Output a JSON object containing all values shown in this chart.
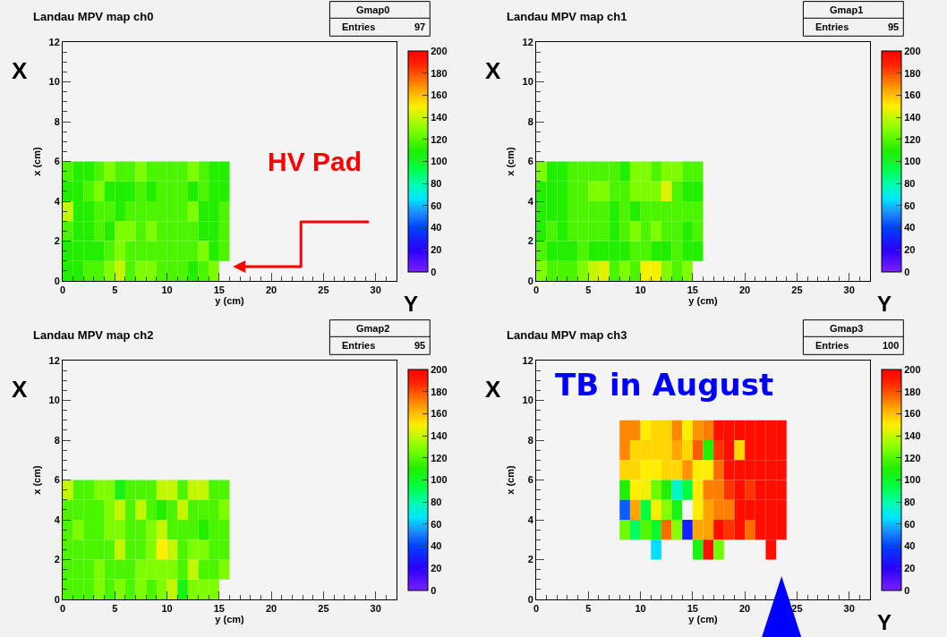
{
  "chart_data": [
    {
      "type": "heatmap",
      "title": "Landau MPV map ch0",
      "xlabel": "y (cm)",
      "ylabel": "x (cm)",
      "annotations": [
        "Gmap0",
        "Entries",
        "97",
        "X",
        "Y",
        "HV Pad"
      ],
      "xlim": [
        0,
        32
      ],
      "xticks": [
        0,
        5,
        10,
        15,
        20,
        25,
        30
      ],
      "ylim": [
        0,
        12
      ],
      "yticks": [
        0,
        2,
        4,
        6,
        8,
        10,
        12
      ],
      "clim": [
        0,
        200
      ],
      "cticks": [
        0,
        20,
        40,
        60,
        80,
        100,
        120,
        140,
        160,
        180,
        200
      ],
      "x": [
        0.5,
        1.5,
        2.5,
        3.5,
        4.5,
        5.5,
        6.5,
        7.5,
        8.5,
        9.5,
        10.5,
        11.5,
        12.5,
        13.5,
        14.5,
        15.5
      ],
      "y": [
        5.5,
        4.5,
        3.5,
        2.5,
        1.5,
        0.5
      ],
      "cells": [
        [
          118,
          110,
          110,
          118,
          128,
          118,
          118,
          128,
          118,
          118,
          118,
          118,
          128,
          118,
          110,
          110
        ],
        [
          110,
          110,
          118,
          128,
          110,
          110,
          110,
          118,
          110,
          118,
          118,
          118,
          110,
          118,
          110,
          110
        ],
        [
          140,
          110,
          110,
          118,
          118,
          110,
          118,
          118,
          118,
          118,
          118,
          118,
          128,
          110,
          110,
          118
        ],
        [
          118,
          110,
          110,
          118,
          110,
          128,
          128,
          118,
          128,
          118,
          118,
          118,
          118,
          110,
          110,
          118
        ],
        [
          110,
          110,
          110,
          110,
          118,
          128,
          118,
          118,
          118,
          118,
          118,
          118,
          118,
          128,
          110,
          118
        ],
        [
          110,
          110,
          118,
          118,
          128,
          140,
          118,
          128,
          128,
          118,
          118,
          118,
          110,
          118,
          128,
          null
        ]
      ]
    },
    {
      "type": "heatmap",
      "title": "Landau MPV map ch1",
      "xlabel": "y (cm)",
      "ylabel": "x (cm)",
      "annotations": [
        "Gmap1",
        "Entries",
        "95",
        "X",
        "Y"
      ],
      "xlim": [
        0,
        32
      ],
      "xticks": [
        0,
        5,
        10,
        15,
        20,
        25,
        30
      ],
      "ylim": [
        0,
        12
      ],
      "yticks": [
        0,
        2,
        4,
        6,
        8,
        10,
        12
      ],
      "clim": [
        0,
        200
      ],
      "cticks": [
        0,
        20,
        40,
        60,
        80,
        100,
        120,
        140,
        160,
        180,
        200
      ],
      "x": [
        0.5,
        1.5,
        2.5,
        3.5,
        4.5,
        5.5,
        6.5,
        7.5,
        8.5,
        9.5,
        10.5,
        11.5,
        12.5,
        13.5,
        14.5,
        15.5
      ],
      "y": [
        5.5,
        4.5,
        3.5,
        2.5,
        1.5,
        0.5
      ],
      "cells": [
        [
          128,
          110,
          110,
          118,
          118,
          118,
          118,
          118,
          110,
          128,
          128,
          118,
          128,
          128,
          118,
          118
        ],
        [
          110,
          110,
          110,
          118,
          118,
          128,
          128,
          118,
          118,
          128,
          128,
          128,
          145,
          118,
          110,
          110
        ],
        [
          110,
          110,
          110,
          118,
          118,
          118,
          118,
          110,
          118,
          110,
          118,
          118,
          118,
          118,
          118,
          118
        ],
        [
          110,
          118,
          110,
          118,
          118,
          118,
          118,
          110,
          118,
          128,
          118,
          128,
          118,
          118,
          110,
          118
        ],
        [
          118,
          110,
          110,
          110,
          118,
          110,
          110,
          110,
          110,
          118,
          118,
          110,
          110,
          118,
          110,
          110
        ],
        [
          128,
          118,
          118,
          118,
          128,
          140,
          145,
          118,
          128,
          118,
          148,
          148,
          128,
          118,
          128,
          null
        ]
      ]
    },
    {
      "type": "heatmap",
      "title": "Landau MPV map ch2",
      "xlabel": "y (cm)",
      "ylabel": "x (cm)",
      "annotations": [
        "Gmap2",
        "Entries",
        "95",
        "X"
      ],
      "xlim": [
        0,
        32
      ],
      "xticks": [
        0,
        5,
        10,
        15,
        20,
        25,
        30
      ],
      "ylim": [
        0,
        12
      ],
      "yticks": [
        0,
        2,
        4,
        6,
        8,
        10,
        12
      ],
      "clim": [
        0,
        200
      ],
      "cticks": [
        0,
        20,
        40,
        60,
        80,
        100,
        120,
        140,
        160,
        180,
        200
      ],
      "x": [
        0.5,
        1.5,
        2.5,
        3.5,
        4.5,
        5.5,
        6.5,
        7.5,
        8.5,
        9.5,
        10.5,
        11.5,
        12.5,
        13.5,
        14.5,
        15.5
      ],
      "y": [
        5.5,
        4.5,
        3.5,
        2.5,
        1.5,
        0.5
      ],
      "cells": [
        [
          140,
          118,
          118,
          128,
          128,
          105,
          118,
          118,
          118,
          140,
          140,
          118,
          140,
          140,
          118,
          118
        ],
        [
          118,
          118,
          118,
          118,
          128,
          140,
          118,
          140,
          118,
          110,
          118,
          140,
          118,
          118,
          118,
          128
        ],
        [
          118,
          128,
          118,
          118,
          128,
          128,
          118,
          118,
          128,
          140,
          118,
          118,
          118,
          110,
          118,
          118
        ],
        [
          118,
          118,
          118,
          118,
          118,
          140,
          118,
          118,
          128,
          150,
          140,
          118,
          128,
          128,
          118,
          118
        ],
        [
          118,
          118,
          118,
          128,
          118,
          118,
          118,
          128,
          128,
          128,
          128,
          118,
          140,
          118,
          118,
          128
        ],
        [
          118,
          118,
          118,
          128,
          118,
          128,
          118,
          128,
          118,
          128,
          140,
          105,
          128,
          128,
          128,
          null
        ]
      ]
    },
    {
      "type": "heatmap",
      "title": "Landau MPV map ch3",
      "xlabel": "y (cm)",
      "ylabel": "x (cm)",
      "annotations": [
        "Gmap3",
        "Entries",
        "100",
        "X",
        "Y",
        "TB in August"
      ],
      "xlim": [
        0,
        32
      ],
      "xticks": [
        0,
        5,
        10,
        15,
        20,
        25,
        30
      ],
      "ylim": [
        0,
        12
      ],
      "yticks": [
        0,
        2,
        4,
        6,
        8,
        10,
        12
      ],
      "clim": [
        0,
        200
      ],
      "cticks": [
        0,
        20,
        40,
        60,
        80,
        100,
        120,
        140,
        160,
        180,
        200
      ],
      "x": [
        8.5,
        9.5,
        10.5,
        11.5,
        12.5,
        13.5,
        14.5,
        15.5,
        16.5,
        17.5,
        18.5,
        19.5,
        20.5,
        21.5,
        22.5,
        23.5
      ],
      "y": [
        8.5,
        7.5,
        6.5,
        5.5,
        4.5,
        3.5,
        2.5
      ],
      "cells": [
        [
          170,
          170,
          150,
          155,
          155,
          170,
          150,
          168,
          172,
          195,
          195,
          195,
          195,
          195,
          195,
          195
        ],
        [
          170,
          155,
          155,
          155,
          155,
          165,
          155,
          178,
          110,
          185,
          195,
          155,
          195,
          195,
          195,
          195
        ],
        [
          155,
          155,
          150,
          150,
          155,
          155,
          168,
          150,
          150,
          175,
          195,
          195,
          195,
          195,
          195,
          195
        ],
        [
          110,
          150,
          148,
          125,
          110,
          75,
          95,
          150,
          172,
          172,
          185,
          195,
          185,
          195,
          195,
          195
        ],
        [
          45,
          165,
          95,
          148,
          130,
          105,
          null,
          150,
          165,
          172,
          172,
          195,
          195,
          195,
          195,
          195
        ],
        [
          125,
          90,
          120,
          100,
          175,
          130,
          30,
          165,
          165,
          195,
          185,
          195,
          175,
          195,
          195,
          195
        ],
        [
          null,
          null,
          null,
          65,
          null,
          null,
          null,
          105,
          195,
          125,
          null,
          null,
          null,
          null,
          195,
          null
        ]
      ]
    }
  ]
}
